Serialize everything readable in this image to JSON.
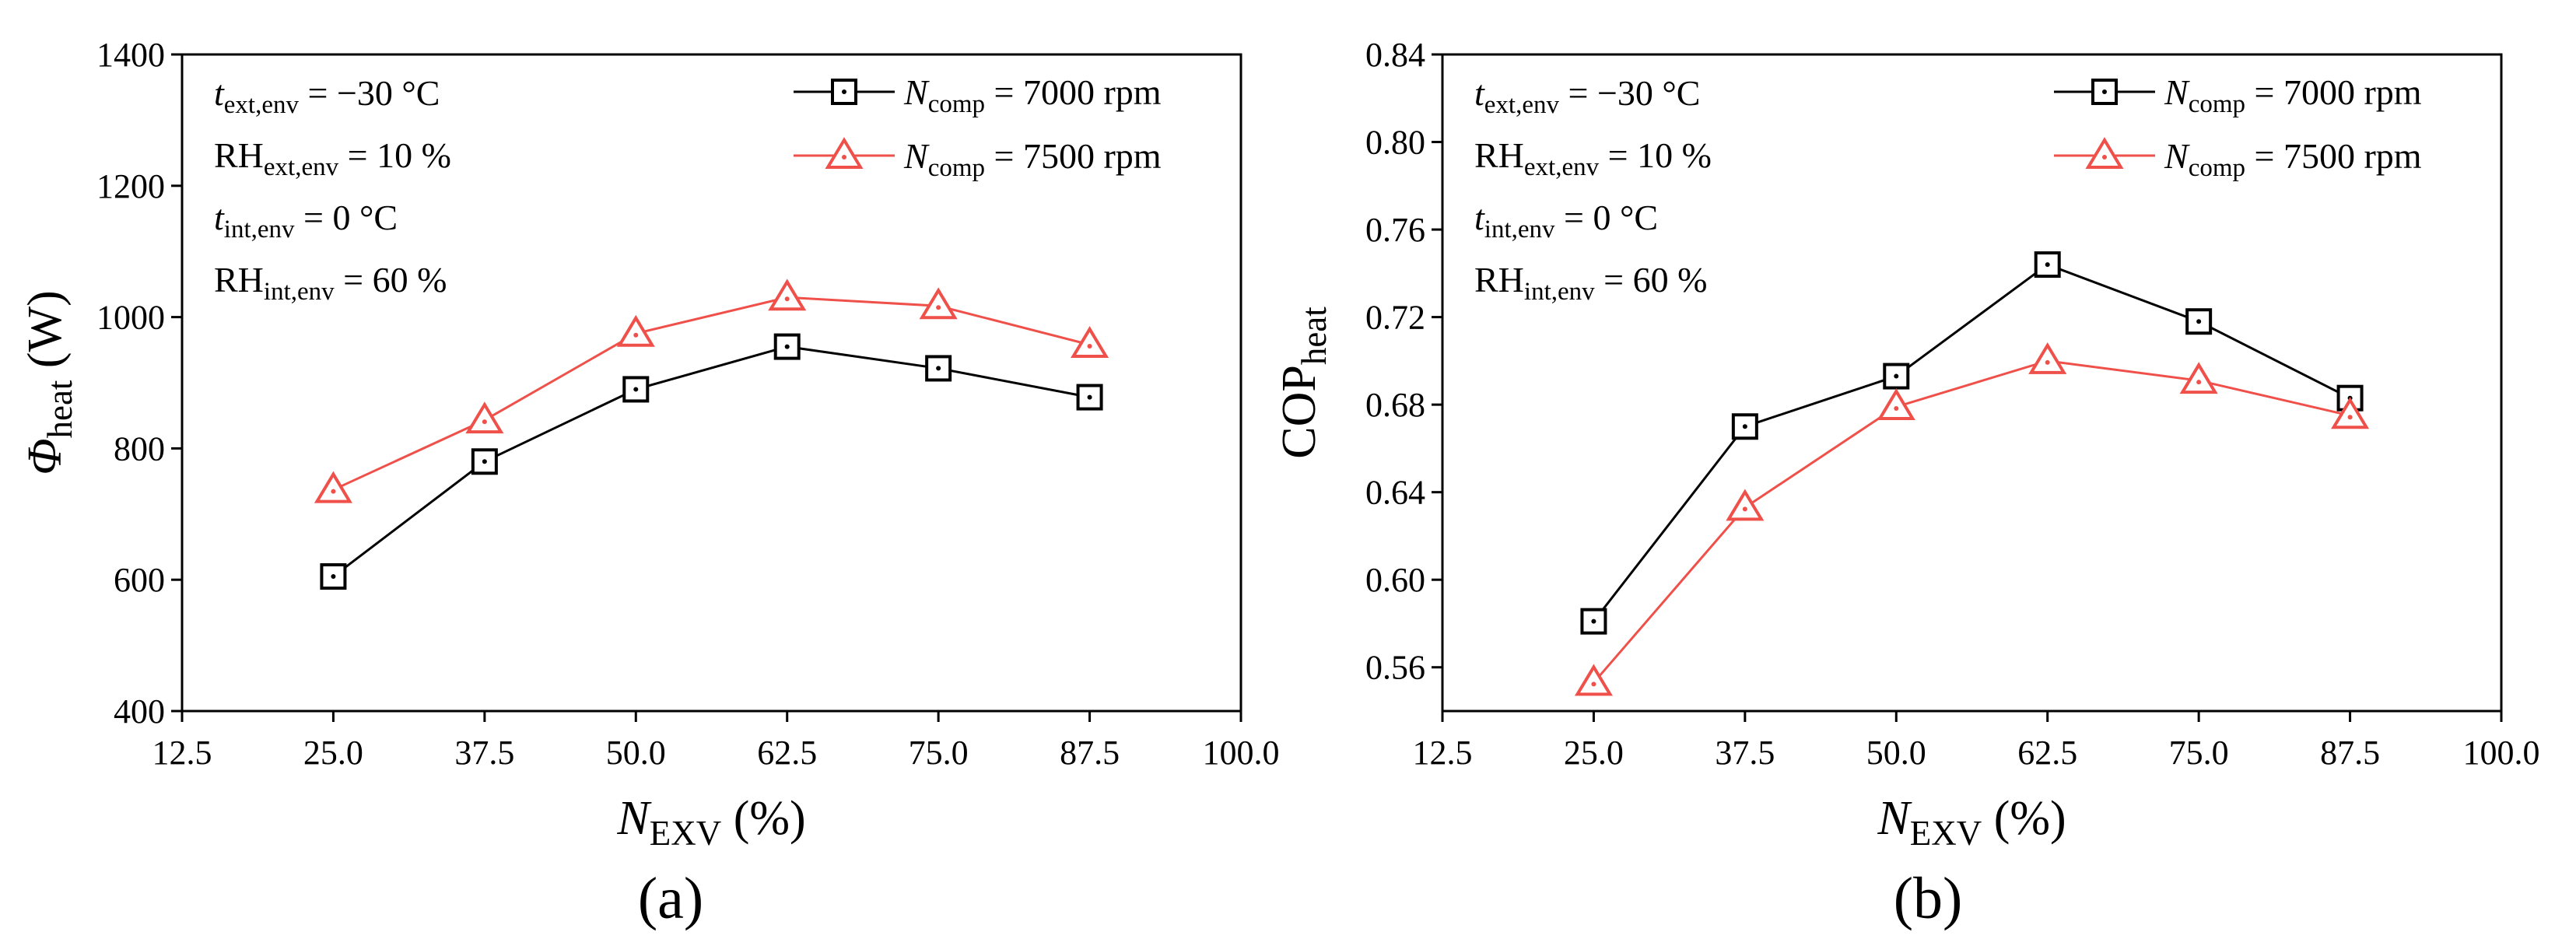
{
  "colors": {
    "series1": "#000000",
    "series2": "#f0504a"
  },
  "chart_data": [
    {
      "type": "line",
      "panel_label": "(a)",
      "x": [
        25.0,
        37.5,
        50.0,
        62.5,
        75.0,
        87.5
      ],
      "xlim": [
        12.5,
        100.0
      ],
      "xticks": [
        "12.5",
        "25.0",
        "37.5",
        "50.0",
        "62.5",
        "75.0",
        "87.5",
        "100.0"
      ],
      "xticks_values": [
        12.5,
        25.0,
        37.5,
        50.0,
        62.5,
        75.0,
        87.5,
        100.0
      ],
      "ylim": [
        400,
        1400
      ],
      "yticks": [
        "400",
        "600",
        "800",
        "1000",
        "1200",
        "1400"
      ],
      "yticks_values": [
        400,
        600,
        800,
        1000,
        1200,
        1400
      ],
      "xlabel": {
        "main": "N",
        "sub": "EXV",
        "rest": " (%)"
      },
      "ylabel": {
        "main": "Φ",
        "sub": "heat",
        "rest": " (W)"
      },
      "series": [
        {
          "name_main": "N",
          "name_sub": "comp",
          "name_rest": " = 7000 rpm",
          "marker": "square",
          "values": [
            605,
            780,
            890,
            955,
            922,
            878
          ]
        },
        {
          "name_main": "N",
          "name_sub": "comp",
          "name_rest": " = 7500 rpm",
          "marker": "triangle",
          "values": [
            737,
            843,
            975,
            1030,
            1017,
            958
          ]
        }
      ],
      "annotations": [
        {
          "main": "t",
          "sub": "ext,env",
          "rest": " = −30 °C"
        },
        {
          "main": "RH",
          "sub": "ext,env",
          "rest": " = 10 %"
        },
        {
          "main": "t",
          "sub": "int,env",
          "rest": " = 0 °C"
        },
        {
          "main": "RH",
          "sub": "int,env",
          "rest": " = 60 %"
        }
      ],
      "legend_position": "top-right"
    },
    {
      "type": "line",
      "panel_label": "(b)",
      "x": [
        25.0,
        37.5,
        50.0,
        62.5,
        75.0,
        87.5
      ],
      "xlim": [
        12.5,
        100.0
      ],
      "xticks": [
        "12.5",
        "25.0",
        "37.5",
        "50.0",
        "62.5",
        "75.0",
        "87.5",
        "100.0"
      ],
      "xticks_values": [
        12.5,
        25.0,
        37.5,
        50.0,
        62.5,
        75.0,
        87.5,
        100.0
      ],
      "ylim": [
        0.54,
        0.84
      ],
      "yticks": [
        "0.56",
        "0.60",
        "0.64",
        "0.68",
        "0.72",
        "0.76",
        "0.80",
        "0.84"
      ],
      "yticks_values": [
        0.56,
        0.6,
        0.64,
        0.68,
        0.72,
        0.76,
        0.8,
        0.84
      ],
      "xlabel": {
        "main": "N",
        "sub": "EXV",
        "rest": " (%)"
      },
      "ylabel": {
        "main": "COP",
        "sub": "heat",
        "rest": ""
      },
      "series": [
        {
          "name_main": "N",
          "name_sub": "comp",
          "name_rest": " = 7000 rpm",
          "marker": "square",
          "values": [
            0.581,
            0.67,
            0.693,
            0.744,
            0.718,
            0.683
          ]
        },
        {
          "name_main": "N",
          "name_sub": "comp",
          "name_rest": " = 7500 rpm",
          "marker": "triangle",
          "values": [
            0.553,
            0.633,
            0.679,
            0.7,
            0.691,
            0.675
          ]
        }
      ],
      "annotations": [
        {
          "main": "t",
          "sub": "ext,env",
          "rest": " = −30 °C"
        },
        {
          "main": "RH",
          "sub": "ext,env",
          "rest": " = 10 %"
        },
        {
          "main": "t",
          "sub": "int,env",
          "rest": " = 0 °C"
        },
        {
          "main": "RH",
          "sub": "int,env",
          "rest": " = 60 %"
        }
      ],
      "legend_position": "top-right"
    }
  ]
}
